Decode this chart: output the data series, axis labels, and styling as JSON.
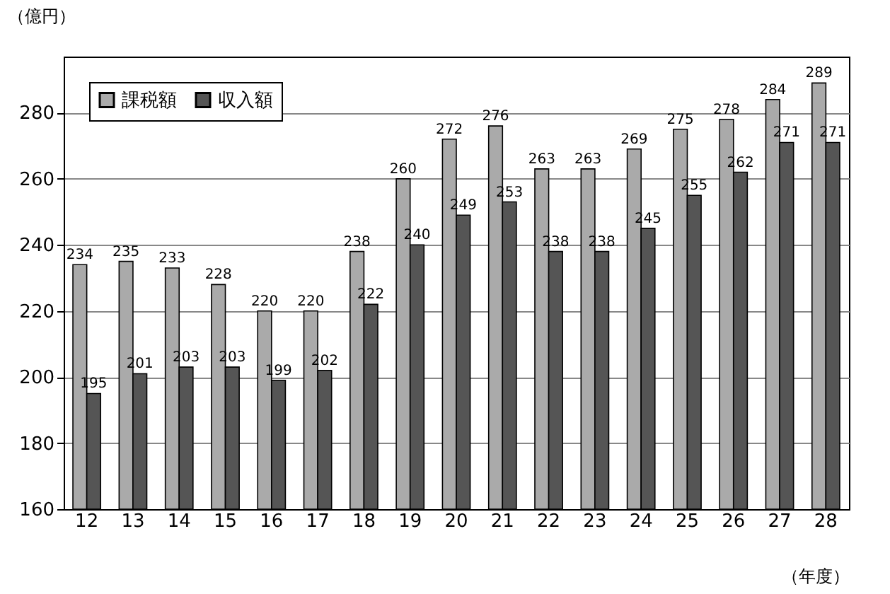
{
  "chart_data": {
    "type": "bar",
    "categories": [
      "12",
      "13",
      "14",
      "15",
      "16",
      "17",
      "18",
      "19",
      "20",
      "21",
      "22",
      "23",
      "24",
      "25",
      "26",
      "27",
      "28"
    ],
    "series": [
      {
        "name": "課税額",
        "color": "#aaaaaa",
        "values": [
          234,
          235,
          233,
          228,
          220,
          220,
          238,
          260,
          272,
          276,
          263,
          263,
          269,
          275,
          278,
          284,
          289
        ]
      },
      {
        "name": "収入額",
        "color": "#555555",
        "values": [
          195,
          201,
          203,
          203,
          199,
          202,
          222,
          240,
          249,
          253,
          238,
          238,
          245,
          255,
          262,
          271,
          271
        ]
      }
    ],
    "ylabel": "（億円）",
    "xlabel": "（年度）",
    "ylim": [
      160,
      297
    ],
    "yticks": [
      160,
      180,
      200,
      220,
      240,
      260,
      280
    ],
    "grid": "y",
    "legend": "top left",
    "data_labels": true
  }
}
